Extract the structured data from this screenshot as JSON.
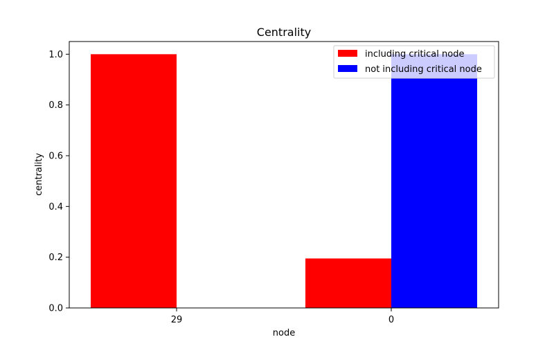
{
  "chart_data": {
    "type": "bar",
    "title": "Centrality",
    "xlabel": "node",
    "ylabel": "centrality",
    "categories": [
      "29",
      "0"
    ],
    "ylim": [
      0,
      1.05
    ],
    "yticks": [
      0.0,
      0.2,
      0.4,
      0.6,
      0.8,
      1.0
    ],
    "ytick_labels": [
      "0.0",
      "0.2",
      "0.4",
      "0.6",
      "0.8",
      "1.0"
    ],
    "grid": false,
    "legend_position": "top-right",
    "series": [
      {
        "name": "including critical node",
        "color": "#ff0000",
        "values": [
          1.0,
          0.195
        ]
      },
      {
        "name": "not including critical node",
        "color": "#0000ff",
        "values": [
          0.0,
          1.0
        ]
      }
    ]
  }
}
